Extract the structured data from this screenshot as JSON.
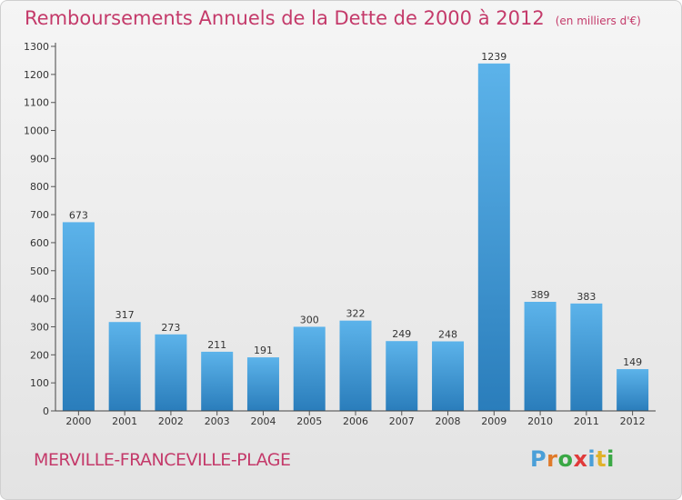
{
  "title": "Remboursements Annuels de la Dette de 2000 à 2012",
  "subtitle": "(en milliers d'€)",
  "place_name": "MERVILLE-FRANCEVILLE-PLAGE",
  "logo": {
    "text": "Proxiti",
    "colors": [
      "#4a9fd8",
      "#e07a2a",
      "#3aa845",
      "#e03a3a",
      "#4a9fd8",
      "#e0b22a",
      "#3aa845"
    ]
  },
  "colors": {
    "bar_top": "#5cb3ea",
    "bar_bottom": "#2a7dbb",
    "axis": "#444444",
    "grid_tick": "#555555",
    "text": "#333333",
    "title": "#c43a6a"
  },
  "chart_data": {
    "type": "bar",
    "title": "Remboursements Annuels de la Dette de 2000 à 2012",
    "subtitle": "(en milliers d'€)",
    "xlabel": "",
    "ylabel": "",
    "categories": [
      "2000",
      "2001",
      "2002",
      "2003",
      "2004",
      "2005",
      "2006",
      "2007",
      "2008",
      "2009",
      "2010",
      "2011",
      "2012"
    ],
    "values": [
      673,
      317,
      273,
      211,
      191,
      300,
      322,
      249,
      248,
      1239,
      389,
      383,
      149
    ],
    "ylim": [
      0,
      1300
    ],
    "yticks": [
      0,
      100,
      200,
      300,
      400,
      500,
      600,
      700,
      800,
      900,
      1000,
      1100,
      1200,
      1300
    ],
    "grid": false,
    "data_labels": true
  }
}
